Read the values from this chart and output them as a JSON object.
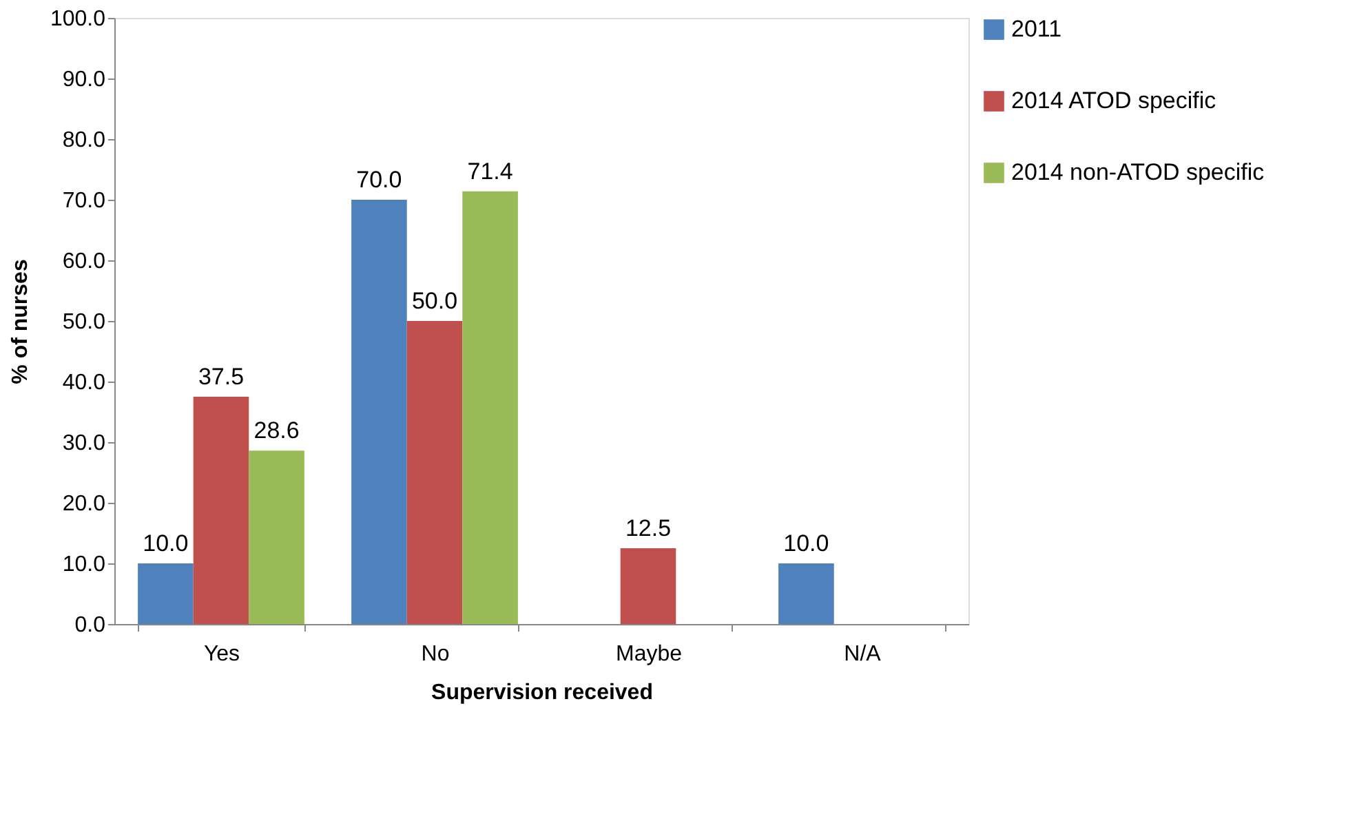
{
  "chart_data": {
    "type": "bar",
    "xlabel": "Supervision received",
    "ylabel": "% of nurses",
    "categories": [
      "Yes",
      "No",
      "Maybe",
      "N/A"
    ],
    "series": [
      {
        "name": "2011",
        "color": "#4f81bd",
        "values": [
          10.0,
          70.0,
          null,
          10.0
        ],
        "value_labels": [
          "10.0",
          "70.0",
          null,
          "10.0"
        ]
      },
      {
        "name": "2014 ATOD specific",
        "color": "#c0504d",
        "values": [
          37.5,
          50.0,
          12.5,
          null
        ],
        "value_labels": [
          "37.5",
          "50.0",
          "12.5",
          null
        ]
      },
      {
        "name": "2014 non-ATOD specific",
        "color": "#9bbb59",
        "values": [
          28.6,
          71.4,
          null,
          null
        ],
        "value_labels": [
          "28.6",
          "71.4",
          null,
          null
        ]
      }
    ],
    "ylim": [
      0,
      100
    ],
    "yticks": [
      {
        "value": 0,
        "label": "0.0"
      },
      {
        "value": 10,
        "label": "10.0"
      },
      {
        "value": 20,
        "label": "20.0"
      },
      {
        "value": 30,
        "label": "30.0"
      },
      {
        "value": 40,
        "label": "40.0"
      },
      {
        "value": 50,
        "label": "50.0"
      },
      {
        "value": 60,
        "label": "60.0"
      },
      {
        "value": 70,
        "label": "70.0"
      },
      {
        "value": 80,
        "label": "80.0"
      },
      {
        "value": 90,
        "label": "90.0"
      },
      {
        "value": 100,
        "label": "100.0"
      }
    ],
    "legend": "right"
  }
}
